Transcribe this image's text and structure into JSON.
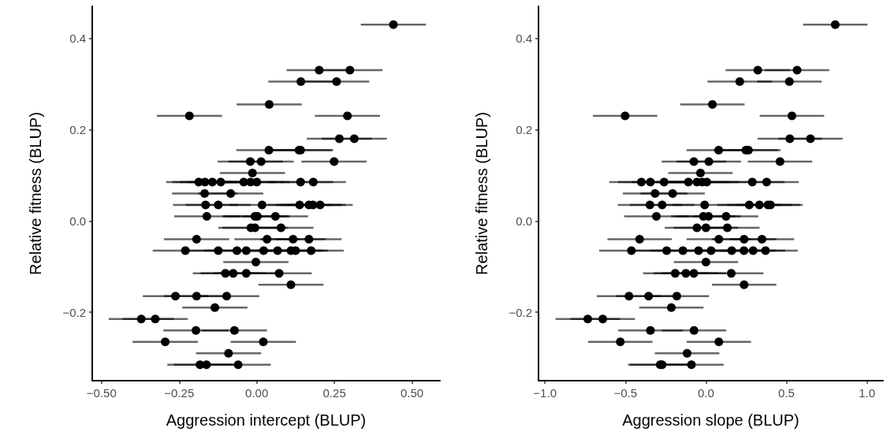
{
  "chart_data": [
    {
      "type": "scatter",
      "xlabel": "Aggression intercept (BLUP)",
      "ylabel": "Relative fitness (BLUP)",
      "color": "#000000",
      "marker": "circle",
      "x": [
        0.44,
        0.201,
        0.3,
        0.142,
        0.257,
        0.04,
        -0.217,
        0.292,
        0.266,
        0.314,
        0.039,
        0.136,
        0.141,
        -0.021,
        0.014,
        0.249,
        -0.014,
        -0.187,
        -0.167,
        -0.143,
        -0.116,
        -0.042,
        -0.02,
        0,
        0.141,
        0.182,
        -0.168,
        -0.084,
        -0.165,
        -0.124,
        0.017,
        0.138,
        0.168,
        0.181,
        0.204,
        -0.161,
        -0.006,
        0.002,
        0.06,
        -0.019,
        -0.006,
        0.078,
        -0.194,
        0.033,
        0.117,
        0.168,
        -0.23,
        -0.124,
        -0.064,
        -0.034,
        0.022,
        0.067,
        0.11,
        0.125,
        0.175,
        -0.003,
        -0.101,
        -0.076,
        -0.034,
        0.072,
        0.11,
        -0.262,
        -0.194,
        -0.097,
        -0.135,
        -0.372,
        -0.327,
        -0.196,
        -0.072,
        -0.295,
        0.021,
        -0.091,
        -0.183,
        -0.162,
        -0.06
      ],
      "values": [
        0.43,
        0.33,
        0.33,
        0.305,
        0.305,
        0.255,
        0.23,
        0.23,
        0.18,
        0.18,
        0.155,
        0.155,
        0.155,
        0.13,
        0.13,
        0.13,
        0.105,
        0.085,
        0.085,
        0.085,
        0.085,
        0.085,
        0.085,
        0.085,
        0.085,
        0.085,
        0.06,
        0.06,
        0.035,
        0.035,
        0.035,
        0.035,
        0.035,
        0.035,
        0.035,
        0.01,
        0.01,
        0.01,
        0.01,
        -0.015,
        -0.015,
        -0.015,
        -0.04,
        -0.04,
        -0.04,
        -0.04,
        -0.065,
        -0.065,
        -0.065,
        -0.065,
        -0.065,
        -0.065,
        -0.065,
        -0.065,
        -0.065,
        -0.09,
        -0.115,
        -0.115,
        -0.115,
        -0.115,
        -0.14,
        -0.165,
        -0.165,
        -0.165,
        -0.19,
        -0.215,
        -0.215,
        -0.24,
        -0.24,
        -0.265,
        -0.265,
        -0.29,
        -0.315,
        -0.315,
        -0.315
      ],
      "xerrors": [
        0.105,
        0.105,
        0.105,
        0.105,
        0.105,
        0.105,
        0.105,
        0.105,
        0.105,
        0.105,
        0.105,
        0.105,
        0.105,
        0.105,
        0.105,
        0.105,
        0.105,
        0.105,
        0.105,
        0.105,
        0.105,
        0.105,
        0.105,
        0.105,
        0.105,
        0.105,
        0.105,
        0.105,
        0.105,
        0.105,
        0.105,
        0.105,
        0.105,
        0.105,
        0.105,
        0.105,
        0.105,
        0.105,
        0.105,
        0.105,
        0.105,
        0.105,
        0.105,
        0.105,
        0.105,
        0.105,
        0.105,
        0.105,
        0.105,
        0.105,
        0.105,
        0.105,
        0.105,
        0.105,
        0.105,
        0.105,
        0.105,
        0.105,
        0.105,
        0.105,
        0.105,
        0.105,
        0.105,
        0.105,
        0.105,
        0.105,
        0.105,
        0.105,
        0.105,
        0.105,
        0.105,
        0.105,
        0.105,
        0.105,
        0.105
      ],
      "xlim": [
        -0.53,
        0.59
      ],
      "xticks": [
        {
          "value": -0.5,
          "label": "−0.50"
        },
        {
          "value": -0.25,
          "label": "−0.25"
        },
        {
          "value": 0,
          "label": "0.00"
        },
        {
          "value": 0.25,
          "label": "0.25"
        },
        {
          "value": 0.5,
          "label": "0.50"
        }
      ],
      "ylim": [
        -0.35,
        0.47
      ],
      "yticks": [
        {
          "value": -0.2,
          "label": "−0.2"
        },
        {
          "value": 0,
          "label": "0.0"
        },
        {
          "value": 0.2,
          "label": "0.2"
        },
        {
          "value": 0.4,
          "label": "0.4"
        }
      ]
    },
    {
      "type": "scatter",
      "xlabel": "Aggression slope (BLUP)",
      "ylabel": "Relative fitness (BLUP)",
      "color": "#000000",
      "marker": "circle",
      "x": [
        0.803,
        0.322,
        0.566,
        0.21,
        0.518,
        0.04,
        -0.502,
        0.534,
        0.521,
        0.649,
        0.079,
        0.248,
        0.264,
        -0.075,
        0.018,
        0.46,
        -0.034,
        -0.401,
        -0.345,
        -0.26,
        -0.109,
        -0.056,
        -0.024,
        0.005,
        0.288,
        0.377,
        -0.316,
        -0.207,
        -0.348,
        -0.272,
        -0.008,
        0.269,
        0.332,
        0.385,
        0.401,
        -0.308,
        -0.016,
        0.016,
        0.125,
        -0.056,
        0,
        0.133,
        -0.412,
        0.08,
        0.237,
        0.348,
        -0.463,
        -0.244,
        -0.143,
        -0.046,
        0.032,
        0.16,
        0.236,
        0.293,
        0.37,
        0,
        -0.191,
        -0.125,
        -0.075,
        0.157,
        0.237,
        -0.478,
        -0.356,
        -0.181,
        -0.215,
        -0.734,
        -0.641,
        -0.345,
        -0.074,
        -0.532,
        0.08,
        -0.117,
        -0.284,
        -0.272,
        -0.09
      ],
      "values": [
        0.43,
        0.33,
        0.33,
        0.305,
        0.305,
        0.255,
        0.23,
        0.23,
        0.18,
        0.18,
        0.155,
        0.155,
        0.155,
        0.13,
        0.13,
        0.13,
        0.105,
        0.085,
        0.085,
        0.085,
        0.085,
        0.085,
        0.085,
        0.085,
        0.085,
        0.085,
        0.06,
        0.06,
        0.035,
        0.035,
        0.035,
        0.035,
        0.035,
        0.035,
        0.035,
        0.01,
        0.01,
        0.01,
        0.01,
        -0.015,
        -0.015,
        -0.015,
        -0.04,
        -0.04,
        -0.04,
        -0.04,
        -0.065,
        -0.065,
        -0.065,
        -0.065,
        -0.065,
        -0.065,
        -0.065,
        -0.065,
        -0.065,
        -0.09,
        -0.115,
        -0.115,
        -0.115,
        -0.115,
        -0.14,
        -0.165,
        -0.165,
        -0.165,
        -0.19,
        -0.215,
        -0.215,
        -0.24,
        -0.24,
        -0.265,
        -0.265,
        -0.29,
        -0.315,
        -0.315,
        -0.315
      ],
      "xerrors": [
        0.2,
        0.2,
        0.2,
        0.2,
        0.2,
        0.2,
        0.2,
        0.2,
        0.2,
        0.2,
        0.2,
        0.2,
        0.2,
        0.2,
        0.2,
        0.2,
        0.2,
        0.2,
        0.2,
        0.2,
        0.2,
        0.2,
        0.2,
        0.2,
        0.2,
        0.2,
        0.2,
        0.2,
        0.2,
        0.2,
        0.2,
        0.2,
        0.2,
        0.2,
        0.2,
        0.2,
        0.2,
        0.2,
        0.2,
        0.2,
        0.2,
        0.2,
        0.2,
        0.2,
        0.2,
        0.2,
        0.2,
        0.2,
        0.2,
        0.2,
        0.2,
        0.2,
        0.2,
        0.2,
        0.2,
        0.2,
        0.2,
        0.2,
        0.2,
        0.2,
        0.2,
        0.2,
        0.2,
        0.2,
        0.2,
        0.2,
        0.2,
        0.2,
        0.2,
        0.2,
        0.2,
        0.2,
        0.2,
        0.2,
        0.2
      ],
      "xlim": [
        -1.04,
        1.1
      ],
      "xticks": [
        {
          "value": -1,
          "label": "−1.0"
        },
        {
          "value": -0.5,
          "label": "−0.5"
        },
        {
          "value": 0,
          "label": "0.0"
        },
        {
          "value": 0.5,
          "label": "0.5"
        },
        {
          "value": 1,
          "label": "1.0"
        }
      ],
      "ylim": [
        -0.35,
        0.47
      ],
      "yticks": [
        {
          "value": -0.2,
          "label": "−0.2"
        },
        {
          "value": 0,
          "label": "0.0"
        },
        {
          "value": 0.2,
          "label": "0.2"
        },
        {
          "value": 0.4,
          "label": "0.4"
        }
      ]
    }
  ]
}
